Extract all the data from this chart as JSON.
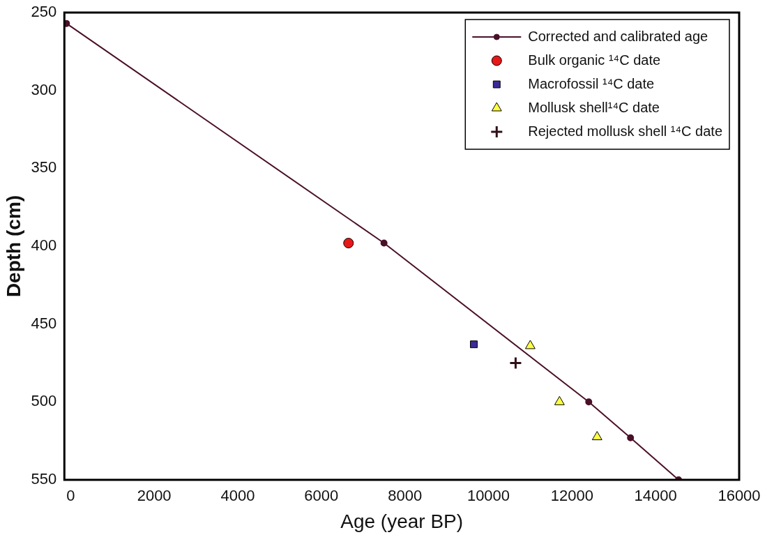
{
  "chart_data": {
    "type": "scatter",
    "xlabel": "Age (year BP)",
    "ylabel": "Depth (cm)",
    "xlim": [
      -150,
      16000
    ],
    "xticks": [
      0,
      2000,
      4000,
      6000,
      8000,
      10000,
      12000,
      14000,
      16000
    ],
    "ylim": [
      550,
      250
    ],
    "yticks": [
      250,
      300,
      350,
      400,
      450,
      500,
      550
    ],
    "grid": false,
    "legend": "top right",
    "series": [
      {
        "name": "Corrected and calibrated age",
        "type": "line",
        "color": "#4a1028",
        "marker": "circle",
        "line_style": "solid",
        "x": [
          -100,
          7500,
          12400,
          13400,
          14550
        ],
        "values": [
          257,
          398,
          500,
          523,
          550
        ]
      },
      {
        "name": "Bulk organic ¹⁴C date",
        "type": "scatter",
        "color": "#e81818",
        "marker": "circle",
        "x": [
          6650
        ],
        "values": [
          398
        ]
      },
      {
        "name": "Macrofossil ¹⁴C date",
        "type": "scatter",
        "color": "#3c2a96",
        "marker": "square",
        "x": [
          9650
        ],
        "values": [
          463
        ]
      },
      {
        "name": "Mollusk shell¹⁴C date",
        "type": "scatter",
        "color": "#ffff44",
        "marker": "triangle",
        "x": [
          11000,
          11700,
          12600
        ],
        "values": [
          464,
          500,
          522.5
        ]
      },
      {
        "name": "Rejected mollusk shell ¹⁴C date",
        "type": "scatter",
        "color": "#301018",
        "marker": "cross",
        "x": [
          10650
        ],
        "values": [
          475
        ]
      }
    ]
  }
}
